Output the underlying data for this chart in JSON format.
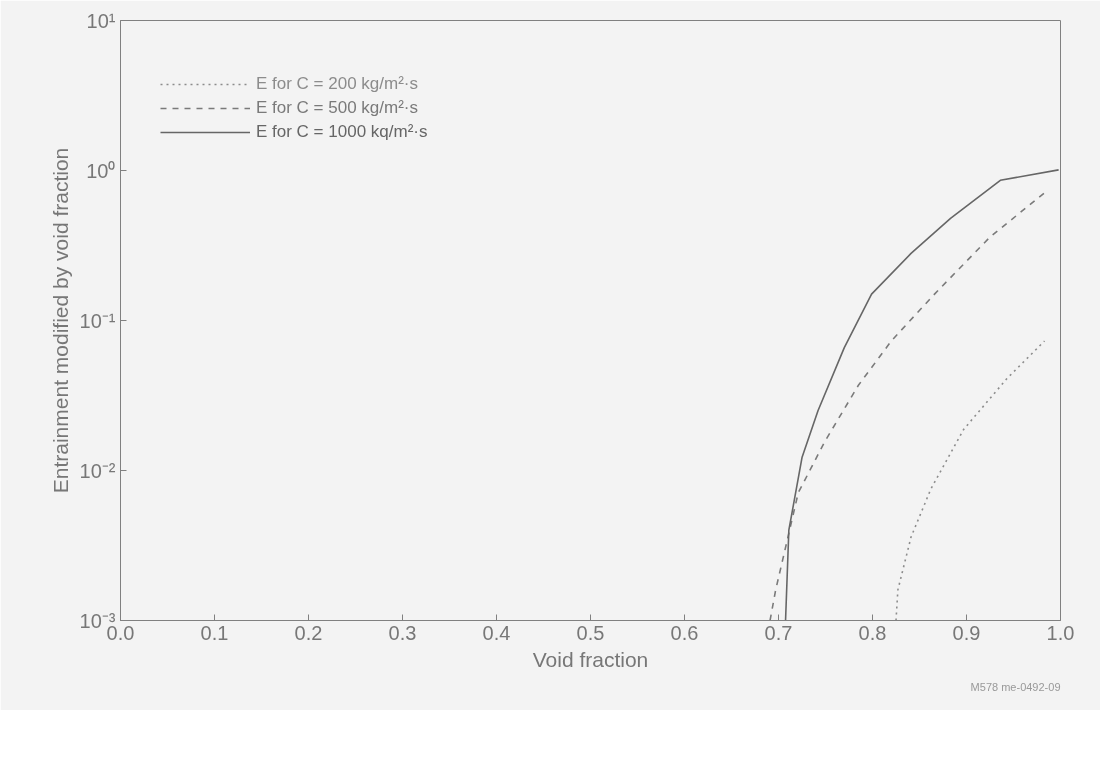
{
  "chart_data": {
    "type": "line",
    "xlabel": "Void fraction",
    "ylabel": "Entrainment modified by void fraction",
    "log": "y",
    "grid": false,
    "legend": "top left",
    "xlim": [
      0,
      1
    ],
    "ylim": [
      0.001,
      10
    ],
    "xticks": [
      {
        "value": 0,
        "label": "0.0"
      },
      0.1,
      0.2,
      0.3,
      0.4,
      0.5,
      0.6,
      0.7,
      0.8,
      0.9,
      {
        "value": 1,
        "label": "1.0"
      }
    ],
    "yticks": [
      {
        "value": 0.001,
        "label": "10⁻³"
      },
      {
        "value": 0.01,
        "label": "10⁻²"
      },
      {
        "value": 0.1,
        "label": "10⁻¹"
      },
      {
        "value": 1,
        "label": "10⁰"
      },
      {
        "value": 10,
        "label": "10¹"
      }
    ],
    "series": [
      {
        "name": "E for C = 200 kg/m²·s",
        "color": "#8c8c8c",
        "line_style": "dotted",
        "x": [
          0.825,
          0.827,
          0.841,
          0.862,
          0.897,
          0.943,
          0.983
        ],
        "values": [
          0.001,
          0.0016,
          0.0036,
          0.0075,
          0.0188,
          0.041,
          0.073
        ]
      },
      {
        "name": "E for C = 500 kg/m²·s",
        "color": "#7a7a7a",
        "line_style": "dashed",
        "x": [
          0.691,
          0.697,
          0.721,
          0.749,
          0.785,
          0.82,
          0.866,
          0.925,
          0.983
        ],
        "values": [
          0.001,
          0.0016,
          0.0071,
          0.0155,
          0.037,
          0.073,
          0.15,
          0.36,
          0.71
        ]
      },
      {
        "name": "E for C = 1000 kq/m²·s",
        "color": "#666666",
        "line_style": "solid",
        "x": [
          0.7075,
          0.711,
          0.725,
          0.742,
          0.77,
          0.799,
          0.841,
          0.883,
          0.936,
          0.998
        ],
        "values": [
          0.001,
          0.004,
          0.0122,
          0.025,
          0.066,
          0.15,
          0.28,
          0.48,
          0.86,
          1.01
        ]
      }
    ],
    "annotations": [
      "M578 me-0492-09"
    ]
  }
}
